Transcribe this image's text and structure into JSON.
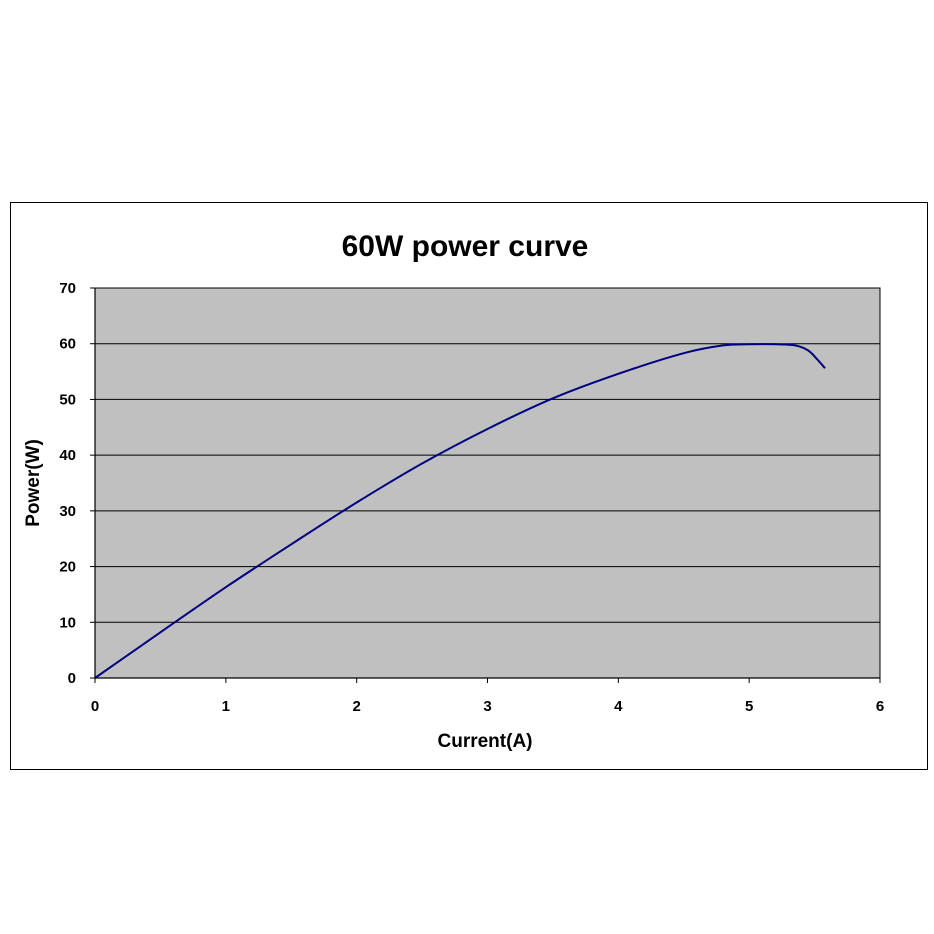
{
  "chart_data": {
    "type": "line",
    "title": "60W power curve",
    "xlabel": "Current(A)",
    "ylabel": "Power(W)",
    "xlim": [
      0,
      6
    ],
    "ylim": [
      0,
      70
    ],
    "xticks": [
      0,
      1,
      2,
      3,
      4,
      5,
      6
    ],
    "yticks": [
      0,
      10,
      20,
      30,
      40,
      50,
      60,
      70
    ],
    "grid": "horizontal",
    "legend": "none",
    "plot_background": "#c0c0c0",
    "line_color": "#000080",
    "series": [
      {
        "x": [
          0,
          0.5,
          1.0,
          1.5,
          2.0,
          2.5,
          3.0,
          3.5,
          4.0,
          4.5,
          4.8,
          5.0,
          5.2,
          5.35,
          5.45,
          5.52,
          5.58
        ],
        "y": [
          0,
          8.2,
          16.3,
          24.0,
          31.5,
          38.5,
          44.7,
          50.2,
          54.6,
          58.3,
          59.7,
          59.9,
          59.9,
          59.7,
          58.8,
          57.2,
          55.6
        ]
      }
    ]
  }
}
